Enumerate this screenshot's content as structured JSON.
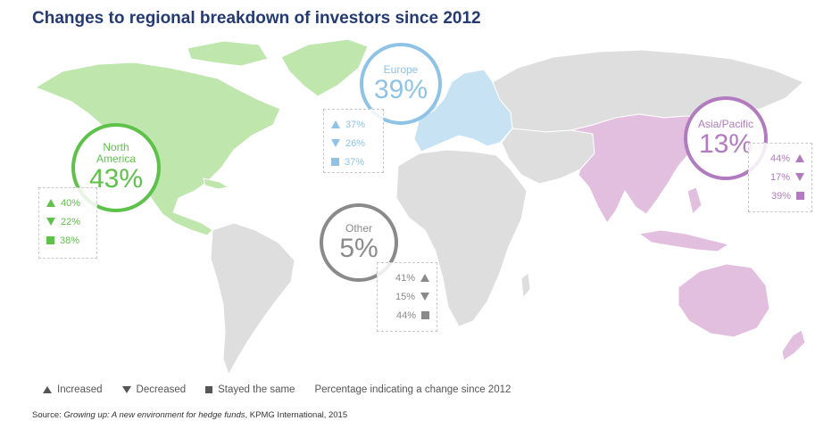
{
  "title": "Changes to regional breakdown of investors since 2012",
  "colors": {
    "land": "#dedede",
    "border": "#ffffff",
    "north_america": "#5ec14a",
    "north_america_fill": "#bfe6ad",
    "europe": "#8ec3e6",
    "europe_fill": "#c6e2f3",
    "asia_pacific": "#b27abf",
    "asia_pacific_fill": "#e2bedf",
    "other": "#8a8a8a",
    "title": "#243a73"
  },
  "regions": {
    "north_america": {
      "name_line1": "North",
      "name_line2": "America",
      "percent": "43%",
      "increased": "40%",
      "decreased": "22%",
      "same": "38%"
    },
    "europe": {
      "name": "Europe",
      "percent": "39%",
      "increased": "37%",
      "decreased": "26%",
      "same": "37%"
    },
    "asia_pacific": {
      "name": "Asia/Pacific",
      "percent": "13%",
      "increased": "44%",
      "decreased": "17%",
      "same": "39%"
    },
    "other": {
      "name": "Other",
      "percent": "5%",
      "increased": "41%",
      "decreased": "15%",
      "same": "44%"
    }
  },
  "legend": {
    "increased": "Increased",
    "decreased": "Decreased",
    "same": "Stayed the same",
    "note": "Percentage indicating a change since 2012"
  },
  "source": {
    "prefix": "Source: ",
    "title": "Growing up: A new environment for hedge funds",
    "suffix": ", KPMG International, 2015"
  }
}
